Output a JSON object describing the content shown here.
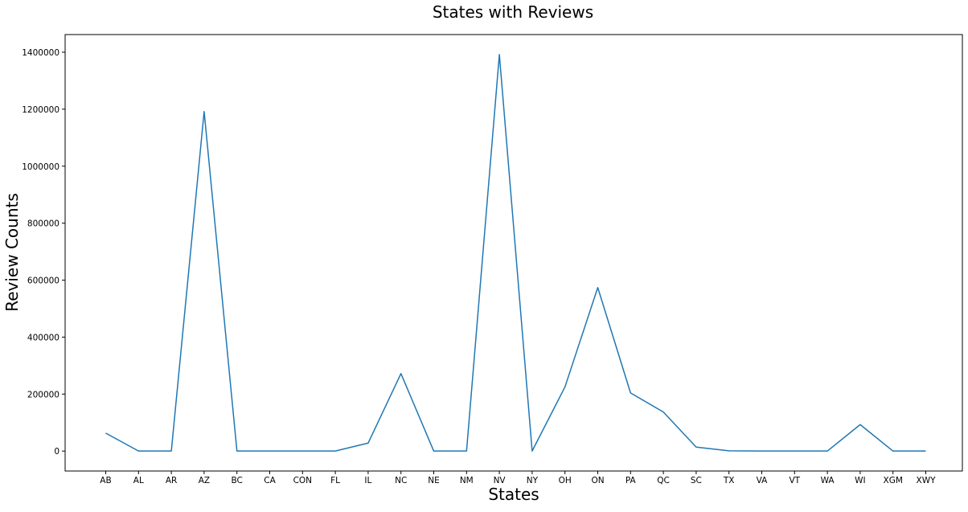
{
  "chart_data": {
    "type": "line",
    "title": "States with Reviews",
    "xlabel": "States",
    "ylabel": "Review Counts",
    "categories": [
      "AB",
      "AL",
      "AR",
      "AZ",
      "BC",
      "CA",
      "CON",
      "FL",
      "IL",
      "NC",
      "NE",
      "NM",
      "NV",
      "NY",
      "OH",
      "ON",
      "PA",
      "QC",
      "SC",
      "TX",
      "VA",
      "VT",
      "WA",
      "WI",
      "XGM",
      "XWY"
    ],
    "series": [
      {
        "name": "",
        "color": "#1f77b4",
        "values": [
          63000,
          100,
          100,
          1192000,
          100,
          100,
          100,
          100,
          28000,
          272000,
          100,
          100,
          1392000,
          100,
          225000,
          574000,
          204000,
          137000,
          14000,
          1000,
          100,
          100,
          100,
          93000,
          100,
          100
        ]
      }
    ],
    "ylim": [
      -70000,
      1462000
    ],
    "yticks": [
      0,
      200000,
      400000,
      600000,
      800000,
      1000000,
      1200000,
      1400000
    ],
    "ytick_labels": [
      "0",
      "200000",
      "400000",
      "600000",
      "800000",
      "1000000",
      "1200000",
      "1400000"
    ],
    "grid": false,
    "legend": "none"
  }
}
